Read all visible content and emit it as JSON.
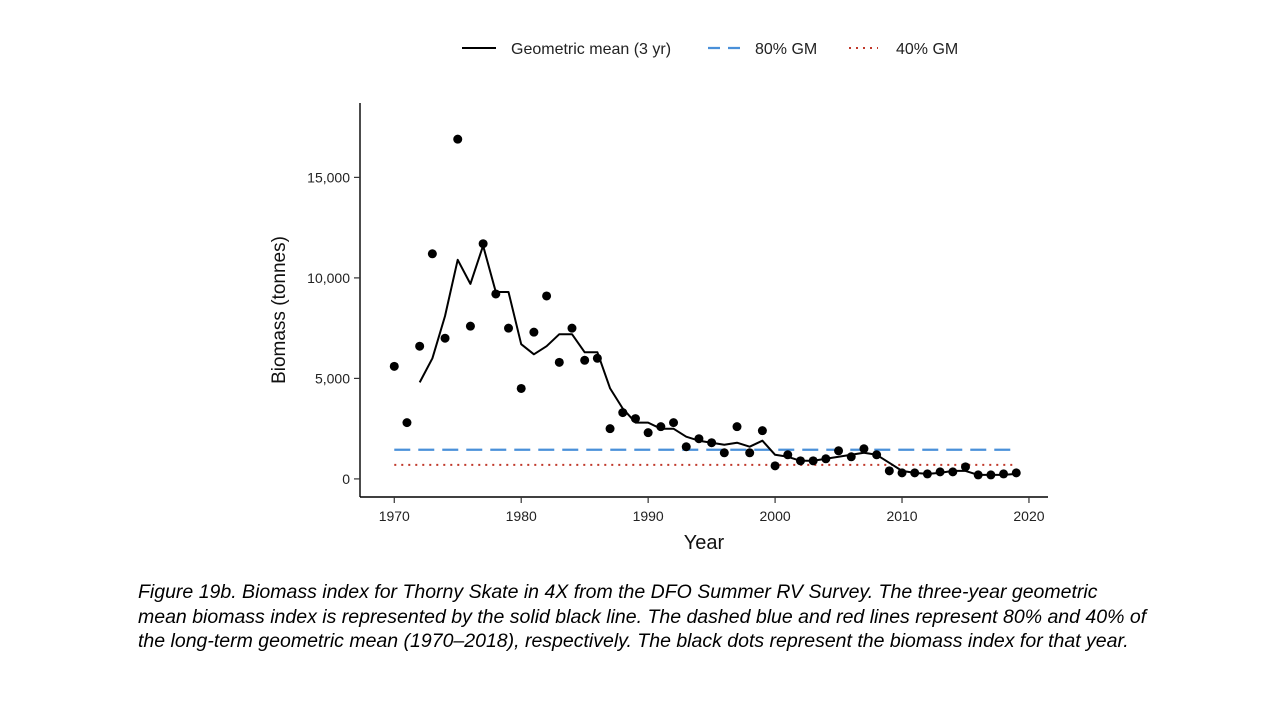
{
  "chart_data": {
    "type": "scatter",
    "title": "",
    "xlabel": "Year",
    "ylabel": "Biomass (tonnes)",
    "xlim": [
      1967.3,
      2021.5
    ],
    "ylim": [
      -900,
      18700
    ],
    "x_ticks": [
      1970,
      1980,
      1990,
      2000,
      2010,
      2020
    ],
    "y_ticks": [
      0,
      5000,
      10000,
      15000
    ],
    "x_tick_labels": [
      "1970",
      "1980",
      "1990",
      "2000",
      "2010",
      "2020"
    ],
    "y_tick_labels": [
      "0",
      "5,000",
      "10,000",
      "15,000"
    ],
    "grid": false,
    "legend_position": "top",
    "legend": [
      {
        "label": "Geometric mean (3 yr)",
        "style": "solid",
        "color": "#000000"
      },
      {
        "label": "80% GM",
        "style": "dashed",
        "color": "#4a90d9"
      },
      {
        "label": "40% GM",
        "style": "dotted",
        "color": "#c0392b"
      }
    ],
    "series": [
      {
        "kind": "points",
        "x": [
          1970,
          1971,
          1972,
          1973,
          1974,
          1975,
          1976,
          1977,
          1978,
          1979,
          1980,
          1981,
          1982,
          1983,
          1984,
          1985,
          1986,
          1987,
          1988,
          1989,
          1990,
          1991,
          1992,
          1993,
          1994,
          1995,
          1996,
          1997,
          1998,
          1999,
          2000,
          2001,
          2002,
          2003,
          2004,
          2005,
          2006,
          2007,
          2008,
          2009,
          2010,
          2011,
          2012,
          2013,
          2014,
          2015,
          2016,
          2017,
          2018,
          2019
        ],
        "y": [
          5600,
          2800,
          6600,
          11200,
          7000,
          16900,
          7600,
          11700,
          9200,
          7500,
          4500,
          7300,
          9100,
          5800,
          7500,
          5900,
          6000,
          2500,
          3300,
          3000,
          2300,
          2600,
          2800,
          1600,
          2000,
          1800,
          1300,
          2600,
          1300,
          2400,
          650,
          1200,
          900,
          900,
          1000,
          1400,
          1100,
          1500,
          1200,
          400,
          300,
          300,
          250,
          350,
          350,
          600,
          200,
          200,
          250,
          300
        ]
      },
      {
        "kind": "line",
        "x": [
          1972,
          1973,
          1974,
          1975,
          1976,
          1977,
          1978,
          1979,
          1980,
          1981,
          1982,
          1983,
          1984,
          1985,
          1986,
          1987,
          1988,
          1989,
          1990,
          1991,
          1992,
          1993,
          1994,
          1995,
          1996,
          1997,
          1998,
          1999,
          2000,
          2001,
          2002,
          2003,
          2004,
          2005,
          2006,
          2007,
          2008,
          2009,
          2010,
          2011,
          2012,
          2013,
          2014,
          2015,
          2016,
          2017,
          2018,
          2019
        ],
        "y": [
          4800,
          6000,
          8100,
          10900,
          9700,
          11600,
          9300,
          9300,
          6700,
          6200,
          6600,
          7200,
          7200,
          6300,
          6300,
          4500,
          3500,
          2800,
          2800,
          2500,
          2500,
          2100,
          1900,
          1800,
          1700,
          1800,
          1600,
          1900,
          1200,
          1100,
          900,
          900,
          1000,
          1100,
          1200,
          1300,
          1200,
          800,
          400,
          300,
          250,
          300,
          400,
          400,
          200,
          200,
          200,
          250
        ]
      },
      {
        "kind": "hline",
        "y": 1450
      },
      {
        "kind": "hline",
        "y": 700
      }
    ]
  },
  "caption": "Figure 19b. Biomass index for Thorny Skate in 4X from the DFO Summer RV Survey. The three-year geometric mean biomass index is represented by the solid black line. The dashed blue and red lines represent 80% and 40% of the long-term geometric mean (1970–2018), respectively. The black dots represent the biomass index for that year."
}
